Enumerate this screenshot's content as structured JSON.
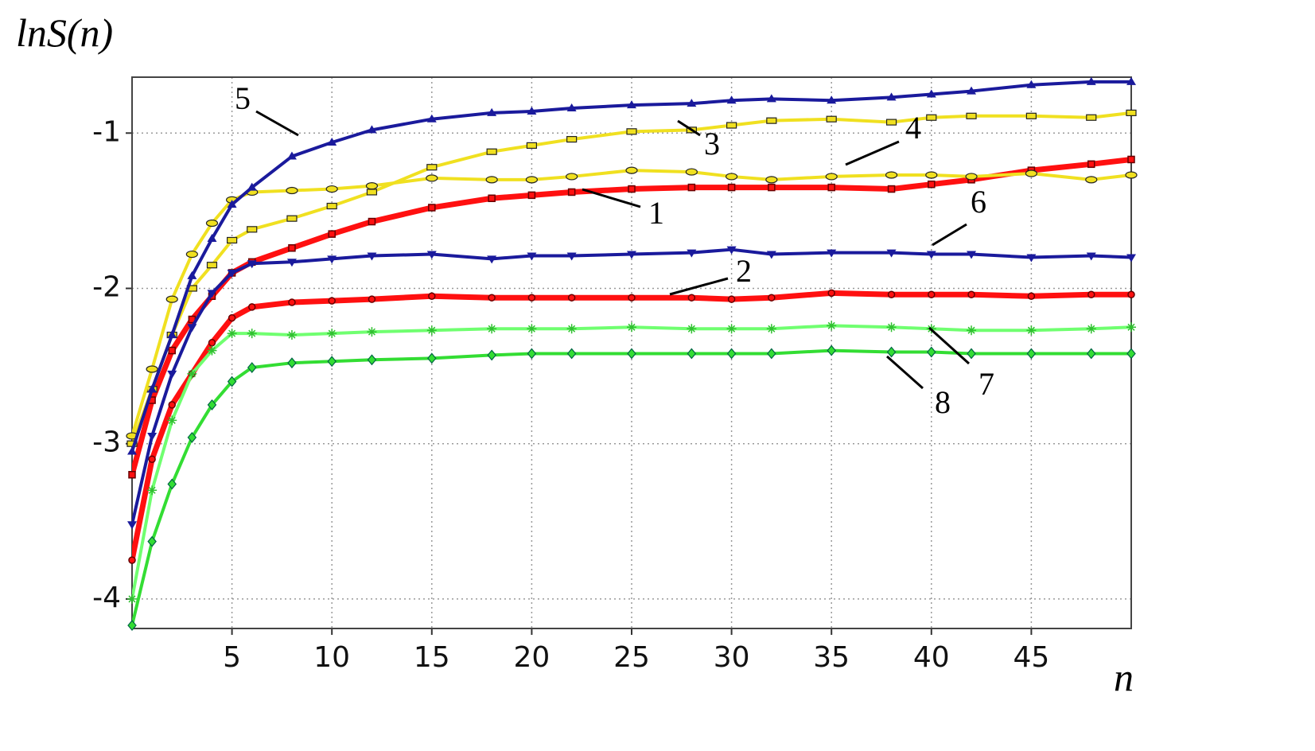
{
  "chart_data": {
    "type": "line",
    "y_label": "lnS(n)",
    "x_label": "n",
    "x": [
      0,
      1,
      2,
      3,
      4,
      5,
      6,
      8,
      10,
      12,
      15,
      18,
      20,
      22,
      25,
      28,
      30,
      32,
      35,
      38,
      40,
      42,
      45,
      48,
      50
    ],
    "xlim": [
      0,
      50
    ],
    "xticks": [
      5,
      10,
      15,
      20,
      25,
      30,
      35,
      40,
      45
    ],
    "ylim": [
      -4.19,
      -0.64
    ],
    "yticks": [
      -1,
      -2,
      -3,
      -4
    ],
    "grid": true,
    "series": [
      {
        "name": "1",
        "color": "#ff1010",
        "marker": "square",
        "values": [
          -3.2,
          -2.72,
          -2.4,
          -2.2,
          -2.05,
          -1.9,
          -1.83,
          -1.74,
          -1.65,
          -1.57,
          -1.48,
          -1.42,
          -1.4,
          -1.38,
          -1.36,
          -1.35,
          -1.35,
          -1.35,
          -1.35,
          -1.36,
          -1.33,
          -1.3,
          -1.24,
          -1.2,
          -1.17
        ]
      },
      {
        "name": "2",
        "color": "#ff1010",
        "marker": "circle",
        "values": [
          -3.75,
          -3.1,
          -2.75,
          -2.55,
          -2.35,
          -2.19,
          -2.12,
          -2.09,
          -2.08,
          -2.07,
          -2.05,
          -2.06,
          -2.06,
          -2.06,
          -2.06,
          -2.06,
          -2.07,
          -2.06,
          -2.03,
          -2.04,
          -2.04,
          -2.04,
          -2.05,
          -2.04,
          -2.04
        ]
      },
      {
        "name": "3",
        "color": "#f0e020",
        "marker": "rect",
        "values": [
          -3.0,
          -2.65,
          -2.3,
          -2.0,
          -1.85,
          -1.69,
          -1.62,
          -1.55,
          -1.47,
          -1.38,
          -1.22,
          -1.12,
          -1.08,
          -1.04,
          -0.99,
          -0.98,
          -0.95,
          -0.92,
          -0.91,
          -0.93,
          -0.9,
          -0.89,
          -0.89,
          -0.9,
          -0.87
        ]
      },
      {
        "name": "4",
        "color": "#f0e020",
        "marker": "ellipse",
        "values": [
          -2.95,
          -2.52,
          -2.07,
          -1.78,
          -1.58,
          -1.43,
          -1.38,
          -1.37,
          -1.36,
          -1.34,
          -1.29,
          -1.3,
          -1.3,
          -1.28,
          -1.24,
          -1.25,
          -1.28,
          -1.3,
          -1.28,
          -1.27,
          -1.27,
          -1.28,
          -1.26,
          -1.3,
          -1.27
        ]
      },
      {
        "name": "5",
        "color": "#1a1a9c",
        "marker": "triangle",
        "values": [
          -3.05,
          -2.65,
          -2.3,
          -1.92,
          -1.68,
          -1.46,
          -1.35,
          -1.15,
          -1.06,
          -0.98,
          -0.91,
          -0.87,
          -0.86,
          -0.84,
          -0.82,
          -0.81,
          -0.79,
          -0.78,
          -0.79,
          -0.77,
          -0.75,
          -0.73,
          -0.69,
          -0.67,
          -0.67
        ]
      },
      {
        "name": "6",
        "color": "#1a1a9c",
        "marker": "triangle-down",
        "values": [
          -3.52,
          -2.95,
          -2.55,
          -2.25,
          -2.03,
          -1.9,
          -1.84,
          -1.83,
          -1.81,
          -1.79,
          -1.78,
          -1.81,
          -1.79,
          -1.79,
          -1.78,
          -1.77,
          -1.75,
          -1.78,
          -1.77,
          -1.77,
          -1.78,
          -1.78,
          -1.8,
          -1.79,
          -1.8
        ]
      },
      {
        "name": "7",
        "color": "#70ff70",
        "marker": "asterisk",
        "values": [
          -4.0,
          -3.3,
          -2.85,
          -2.55,
          -2.4,
          -2.29,
          -2.29,
          -2.3,
          -2.29,
          -2.28,
          -2.27,
          -2.26,
          -2.26,
          -2.26,
          -2.25,
          -2.26,
          -2.26,
          -2.26,
          -2.24,
          -2.25,
          -2.26,
          -2.27,
          -2.27,
          -2.26,
          -2.25
        ]
      },
      {
        "name": "8",
        "color": "#33dd33",
        "marker": "diamond",
        "values": [
          -4.17,
          -3.63,
          -3.26,
          -2.96,
          -2.75,
          -2.6,
          -2.51,
          -2.48,
          -2.47,
          -2.46,
          -2.45,
          -2.43,
          -2.42,
          -2.42,
          -2.42,
          -2.42,
          -2.42,
          -2.42,
          -2.4,
          -2.41,
          -2.41,
          -2.42,
          -2.42,
          -2.42,
          -2.42
        ]
      }
    ]
  }
}
